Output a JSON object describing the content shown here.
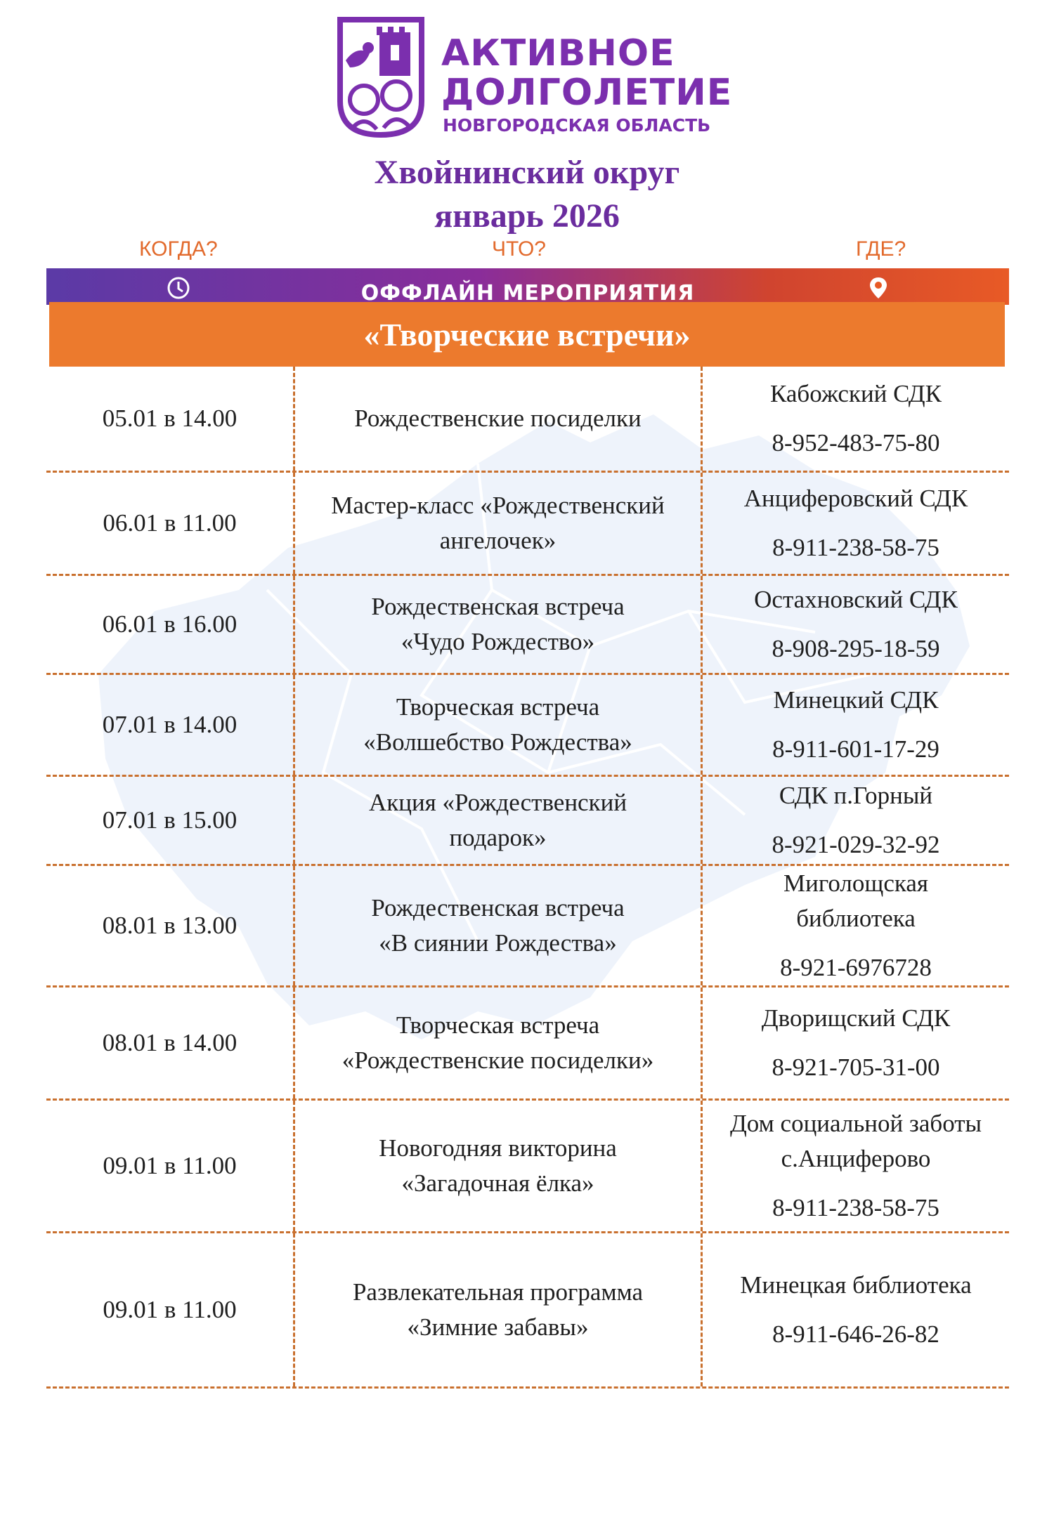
{
  "logo": {
    "line1": "АКТИВНОЕ",
    "line2": "ДОЛГОЛЕТИЕ",
    "line3": "НОВГОРОДСКАЯ ОБЛАСТЬ"
  },
  "title": {
    "line1": "Хвойнинский округ",
    "line2": "январь 2026"
  },
  "columns": {
    "when": "КОГДА?",
    "what": "ЧТО?",
    "where": "ГДЕ?"
  },
  "banner": {
    "text": "ОФФЛАЙН МЕРОПРИЯТИЯ",
    "left_icon": "clock-icon",
    "right_icon": "map-pin-icon"
  },
  "section": {
    "title": "«Творческие встречи»"
  },
  "colors": {
    "purple": "#6a2c9e",
    "orange": "#ec7a2d",
    "label_orange": "#e26a2c"
  },
  "events": [
    {
      "date": "05.01 в 14.00",
      "event": [
        "Рождественские посиделки"
      ],
      "place": [
        "Кабожский СДК"
      ],
      "phone": "8-952-483-75-80"
    },
    {
      "date": "06.01 в 11.00",
      "event": [
        "Мастер-класс «Рождественский",
        "ангелочек»"
      ],
      "place": [
        "Анциферовский СДК"
      ],
      "phone": "8-911-238-58-75"
    },
    {
      "date": "06.01 в 16.00",
      "event": [
        "Рождественская встреча",
        "«Чудо Рождество»"
      ],
      "place": [
        "Остахновский СДК"
      ],
      "phone": "8-908-295-18-59"
    },
    {
      "date": "07.01 в 14.00",
      "event": [
        "Творческая встреча",
        "«Волшебство Рождества»"
      ],
      "place": [
        "Минецкий СДК"
      ],
      "phone": "8-911-601-17-29"
    },
    {
      "date": "07.01 в 15.00",
      "event": [
        "Акция «Рождественский",
        "подарок»"
      ],
      "place": [
        "СДК п.Горный"
      ],
      "phone": "8-921-029-32-92"
    },
    {
      "date": "08.01 в 13.00",
      "event": [
        "Рождественская встреча",
        "«В сиянии Рождества»"
      ],
      "place": [
        "Миголощская",
        "библиотека"
      ],
      "phone": "8-921-6976728"
    },
    {
      "date": "08.01 в 14.00",
      "event": [
        "Творческая встреча",
        "«Рождественские посиделки»"
      ],
      "place": [
        "Дворищский СДК"
      ],
      "phone": "8-921-705-31-00"
    },
    {
      "date": "09.01 в 11.00",
      "event": [
        "Новогодняя викторина",
        "«Загадочная ёлка»"
      ],
      "place": [
        "Дом социальной заботы",
        "с.Анциферово"
      ],
      "phone": "8-911-238-58-75"
    },
    {
      "date": "09.01 в 11.00",
      "event": [
        "Развлекательная программа",
        "«Зимние забавы»"
      ],
      "place": [
        "Минецкая библиотека"
      ],
      "phone": "8-911-646-26-82"
    }
  ]
}
